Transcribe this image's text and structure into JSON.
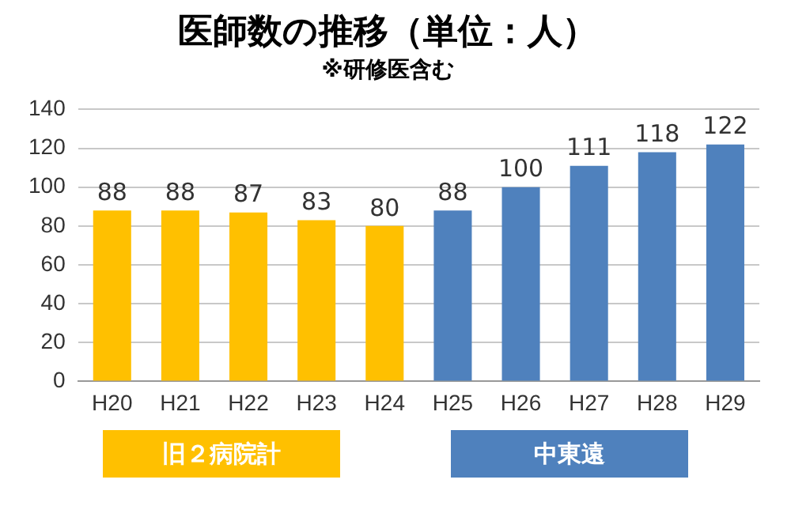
{
  "chart_data": {
    "type": "bar",
    "title": "医師数の推移（単位：人）",
    "subtitle": "※研修医含む",
    "categories": [
      "H20",
      "H21",
      "H22",
      "H23",
      "H24",
      "H25",
      "H26",
      "H27",
      "H28",
      "H29"
    ],
    "series": [
      {
        "name": "旧２病院計",
        "color": "#ffc000",
        "values": [
          88,
          88,
          87,
          83,
          80,
          null,
          null,
          null,
          null,
          null
        ]
      },
      {
        "name": "中東遠",
        "color": "#4f81bd",
        "values": [
          null,
          null,
          null,
          null,
          null,
          88,
          100,
          111,
          118,
          122
        ]
      }
    ],
    "ylim": [
      0,
      140
    ],
    "yticks": [
      0,
      20,
      40,
      60,
      80,
      100,
      120,
      140
    ],
    "grid": "y",
    "data_labels": true,
    "legend": "bottom"
  }
}
